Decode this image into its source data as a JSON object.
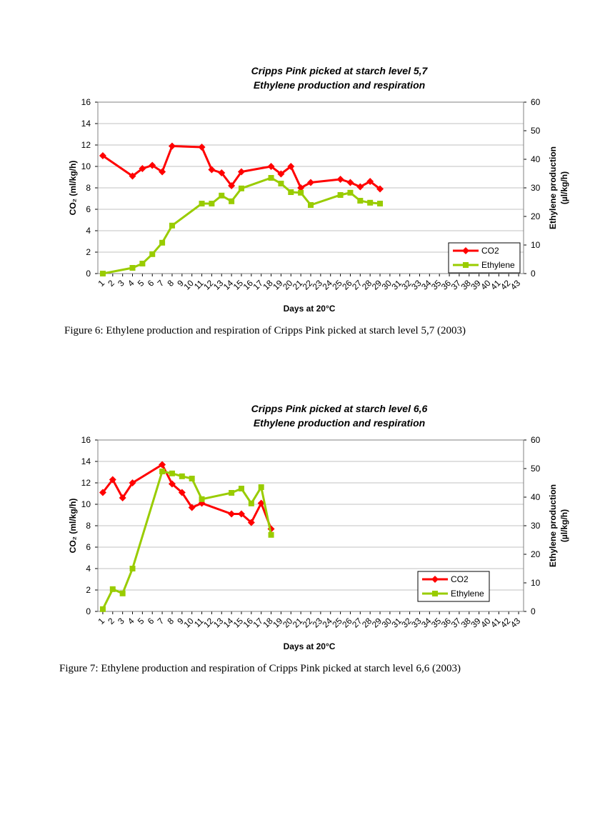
{
  "chart_data": [
    {
      "type": "line",
      "title": [
        "Cripps Pink picked at starch level 5,7",
        "Ethylene production and respiration"
      ],
      "xlabel": "Days at 20°C",
      "ylabel": "CO₂ (ml/kg/h)",
      "y2label": [
        "Ethylene production",
        "(µl/kg/h)"
      ],
      "x": [
        1,
        4,
        5,
        6,
        7,
        8,
        11,
        12,
        13,
        14,
        15,
        18,
        19,
        20,
        21,
        22,
        25,
        26,
        27,
        28,
        29
      ],
      "series": [
        {
          "name": "CO2",
          "color": "#ff0000",
          "marker": "diamond",
          "values": [
            11.0,
            9.1,
            9.8,
            10.1,
            9.5,
            11.9,
            11.8,
            9.7,
            9.4,
            8.2,
            9.5,
            10.0,
            9.3,
            10.0,
            8.0,
            8.5,
            8.8,
            8.5,
            8.1,
            8.6,
            7.9
          ]
        },
        {
          "name": "Ethylene",
          "color": "#99cc00",
          "marker": "square",
          "axis": "y2",
          "values": [
            0,
            2,
            3.5,
            6.8,
            10.8,
            16.8,
            24.5,
            24.5,
            27.3,
            25.3,
            29.8,
            33.5,
            31.5,
            28.5,
            28.3,
            24,
            27.5,
            28.3,
            25.5,
            24.8,
            24.5
          ]
        }
      ],
      "xlim": [
        0.5,
        43.5
      ],
      "xticks": [
        1,
        2,
        3,
        4,
        5,
        6,
        7,
        8,
        9,
        10,
        11,
        12,
        13,
        14,
        15,
        16,
        17,
        18,
        19,
        20,
        21,
        22,
        23,
        24,
        25,
        26,
        27,
        28,
        29,
        30,
        31,
        32,
        33,
        34,
        35,
        36,
        37,
        38,
        39,
        40,
        41,
        42,
        43
      ],
      "ylim": [
        0,
        16
      ],
      "yticks": [
        0,
        2,
        4,
        6,
        8,
        10,
        12,
        14,
        16
      ],
      "y2lim": [
        0,
        60
      ],
      "y2ticks": [
        0,
        10,
        20,
        30,
        40,
        50,
        60
      ],
      "grid": true,
      "legend": "lower right"
    },
    {
      "type": "line",
      "title": [
        "Cripps Pink picked at starch level 6,6",
        "Ethylene production and respiration"
      ],
      "xlabel": "Days at 20°C",
      "ylabel": "CO₂ (ml/kg/h)",
      "y2label": [
        "Ethylene production",
        "(µl/kg/h)"
      ],
      "x": [
        1,
        2,
        3,
        4,
        7,
        8,
        9,
        10,
        11,
        14,
        15,
        16,
        17,
        18
      ],
      "series": [
        {
          "name": "CO2",
          "color": "#ff0000",
          "marker": "diamond",
          "values": [
            11.1,
            12.3,
            10.6,
            12.0,
            13.7,
            11.9,
            11.1,
            9.7,
            10.1,
            9.1,
            9.1,
            8.3,
            10.1,
            7.7
          ]
        },
        {
          "name": "Ethylene",
          "color": "#99cc00",
          "marker": "square",
          "axis": "y2",
          "values": [
            0.8,
            7.8,
            6.3,
            15,
            49,
            48.3,
            47.3,
            46.5,
            39.3,
            41.5,
            43,
            37.8,
            43.5,
            26.8
          ]
        }
      ],
      "xlim": [
        0.5,
        43.5
      ],
      "xticks": [
        1,
        2,
        3,
        4,
        5,
        6,
        7,
        8,
        9,
        10,
        11,
        12,
        13,
        14,
        15,
        16,
        17,
        18,
        19,
        20,
        21,
        22,
        23,
        24,
        25,
        26,
        27,
        28,
        29,
        30,
        31,
        32,
        33,
        34,
        35,
        36,
        37,
        38,
        39,
        40,
        41,
        42,
        43
      ],
      "ylim": [
        0,
        16
      ],
      "yticks": [
        0,
        2,
        4,
        6,
        8,
        10,
        12,
        14,
        16
      ],
      "y2lim": [
        0,
        60
      ],
      "y2ticks": [
        0,
        10,
        20,
        30,
        40,
        50,
        60
      ],
      "grid": true,
      "legend": "lower right"
    }
  ],
  "captions": [
    "Figure 6: Ethylene production and respiration of Cripps Pink picked at starch level 5,7 (2003)",
    "Figure 7: Ethylene production and respiration of Cripps Pink picked at starch level 6,6 (2003)"
  ]
}
